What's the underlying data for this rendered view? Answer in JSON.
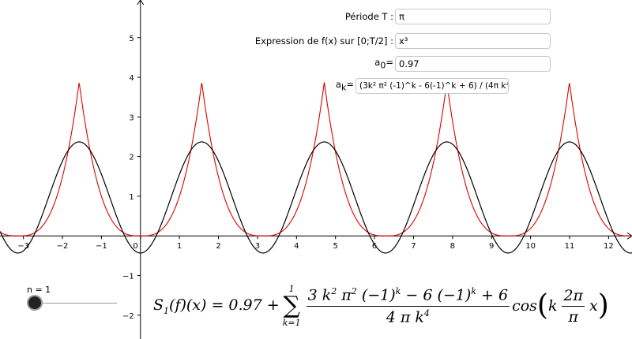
{
  "inputs": {
    "period": {
      "label": "Période T :",
      "value": "π"
    },
    "expression": {
      "label": "Expression de f(x) sur [0;T/2] :",
      "value": "x³"
    },
    "a0": {
      "label_main": "a",
      "label_sub": "0",
      "label_tail": "=",
      "value": "0.97"
    },
    "ak": {
      "label_main": "a",
      "label_sub": "k",
      "label_tail": "=",
      "value": "(3k² π² (-1)^k - 6(-1)^k + 6) / (4π k⁴)"
    }
  },
  "slider": {
    "label": "n = 1",
    "value": 1
  },
  "formula": {
    "lhs": "S",
    "lhs_sub": "1",
    "lhs_rest": "(f)(x) = 0.97 +",
    "sum_upper": "1",
    "sum_lower": "k=1",
    "sigma": "∑",
    "num_a": "3 k",
    "num_b": " π",
    "num_c": " (−1)",
    "num_d": " − 6 (−1)",
    "num_e": " + 6",
    "exp2": "2",
    "expk": "k",
    "den_a": "4 π k",
    "exp4": "4",
    "cos": "cos",
    "paren_l": "(",
    "paren_r": ")",
    "arg_k": "k",
    "arg_num": "2π",
    "arg_den": "π",
    "arg_x": "x"
  },
  "chart_data": {
    "type": "line",
    "xlim": [
      -3.6,
      12.6
    ],
    "ylim": [
      -2.6,
      5.95
    ],
    "x_ticks": [
      -3,
      -2,
      -1,
      0,
      1,
      2,
      3,
      4,
      5,
      6,
      7,
      8,
      9,
      10,
      11,
      12
    ],
    "y_ticks": [
      -2,
      -1,
      1,
      2,
      3,
      4,
      5
    ],
    "x_tick_labels": [
      "−3",
      "−2",
      "−1",
      "0",
      "1",
      "2",
      "3",
      "4",
      "5",
      "6",
      "7",
      "8",
      "9",
      "10",
      "11",
      "12"
    ],
    "y_tick_labels": [
      "−2",
      "−1",
      "1",
      "2",
      "3",
      "4",
      "5"
    ],
    "series": [
      {
        "role": "f(x) = |x|³ periodic, T = π",
        "color": "#e00000",
        "period": 3.14159,
        "exponent": 3
      },
      {
        "role": "Fourier partial sum S1",
        "color": "#000000",
        "a0": 0.97,
        "n": 1,
        "period": 3.14159
      }
    ],
    "grid": false
  }
}
